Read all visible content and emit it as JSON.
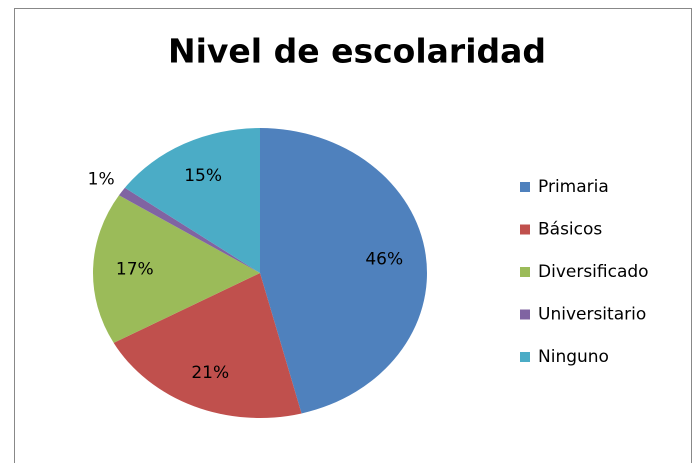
{
  "chart_data": {
    "type": "pie",
    "title": "Nivel de escolaridad",
    "categories": [
      "Primaria",
      "Básicos",
      "Diversificado",
      "Universitario",
      "Ninguno"
    ],
    "values": [
      46,
      21,
      17,
      1,
      15
    ],
    "value_labels": [
      "46%",
      "21%",
      "17%",
      "1%",
      "15%"
    ],
    "colors": [
      "#4f81bd",
      "#c0504d",
      "#9bbb59",
      "#8064a2",
      "#4bacc6"
    ],
    "legend": "right"
  }
}
